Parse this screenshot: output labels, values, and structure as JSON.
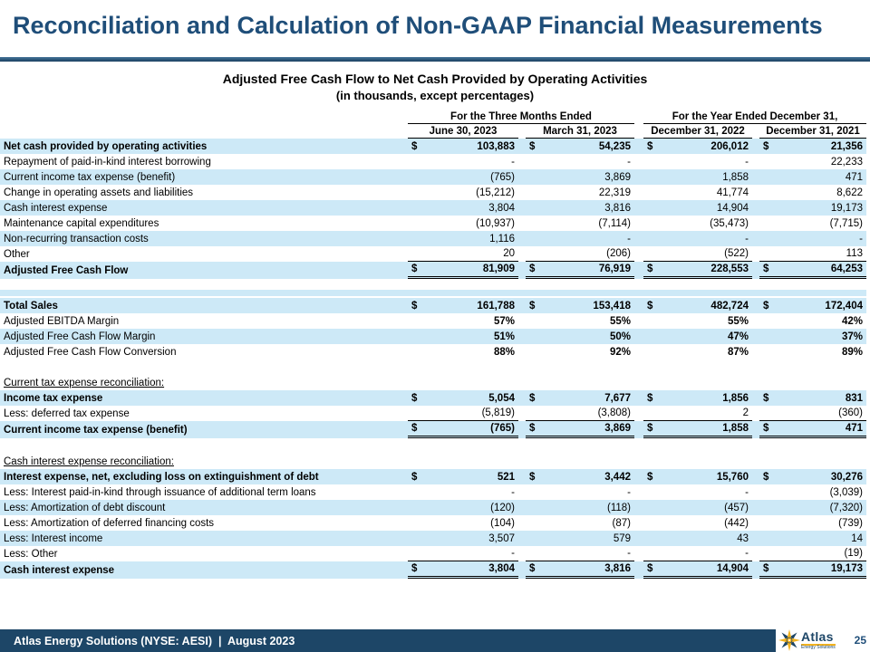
{
  "page_title": "Reconciliation and Calculation of Non-GAAP Financial Measurements",
  "table": {
    "subtitle1": "Adjusted Free Cash Flow to Net Cash Provided by Operating Activities",
    "subtitle2": "(in thousands, except percentages)",
    "col_groups": [
      {
        "label": "For the Three Months Ended",
        "cols": [
          "June 30, 2023",
          "March 31, 2023"
        ]
      },
      {
        "label": "For the Year Ended December 31,",
        "cols": [
          "December 31, 2022",
          "December 31, 2021"
        ]
      }
    ],
    "rows": [
      {
        "label": "Net cash provided by operating activities",
        "dollar": true,
        "bold": true,
        "shade": true,
        "values": [
          "103,883",
          "54,235",
          "206,012",
          "21,356"
        ]
      },
      {
        "label": "Repayment of paid-in-kind interest borrowing",
        "values": [
          "-",
          "-",
          "-",
          "22,233"
        ]
      },
      {
        "label": "Current income tax expense (benefit)",
        "shade": true,
        "values": [
          "(765)",
          "3,869",
          "1,858",
          "471"
        ]
      },
      {
        "label": "Change in operating assets and liabilities",
        "values": [
          "(15,212)",
          "22,319",
          "41,774",
          "8,622"
        ]
      },
      {
        "label": "Cash interest expense",
        "shade": true,
        "values": [
          "3,804",
          "3,816",
          "14,904",
          "19,173"
        ]
      },
      {
        "label": "Maintenance capital expenditures",
        "values": [
          "(10,937)",
          "(7,114)",
          "(35,473)",
          "(7,715)"
        ]
      },
      {
        "label": "Non-recurring transaction costs",
        "shade": true,
        "values": [
          "1,116",
          "-",
          "-",
          "-"
        ]
      },
      {
        "label": "Other",
        "vline": "single",
        "values": [
          "20",
          "(206)",
          "(522)",
          "113"
        ]
      },
      {
        "label": "Adjusted Free Cash Flow",
        "dollar": true,
        "bold": true,
        "shade": true,
        "vline": "double",
        "values": [
          "81,909",
          "76,919",
          "228,553",
          "64,253"
        ]
      },
      {
        "type": "spacer",
        "h": 12
      },
      {
        "type": "spacer",
        "h": 7,
        "shade": true
      },
      {
        "type": "spacer",
        "h": 2
      },
      {
        "label": "Total Sales",
        "dollar": true,
        "bold": true,
        "shade": true,
        "values": [
          "161,788",
          "153,418",
          "482,724",
          "172,404"
        ]
      },
      {
        "label": "Adjusted EBITDA Margin",
        "bold_values": true,
        "values": [
          "57%",
          "55%",
          "55%",
          "42%"
        ]
      },
      {
        "label": "Adjusted Free Cash Flow Margin",
        "shade": true,
        "bold_values": true,
        "values": [
          "51%",
          "50%",
          "47%",
          "37%"
        ]
      },
      {
        "label": "Adjusted Free Cash Flow Conversion",
        "bold_values": true,
        "values": [
          "88%",
          "92%",
          "87%",
          "89%"
        ]
      },
      {
        "type": "spacer",
        "h": 17
      },
      {
        "type": "section",
        "label": "Current tax expense reconciliation:"
      },
      {
        "label": "Income tax expense",
        "dollar": true,
        "bold": true,
        "shade": true,
        "values": [
          "5,054",
          "7,677",
          "1,856",
          "831"
        ]
      },
      {
        "label": "Less: deferred tax expense",
        "vline": "single",
        "values": [
          "(5,819)",
          "(3,808)",
          "2",
          "(360)"
        ]
      },
      {
        "label": "Current income tax expense (benefit)",
        "dollar": true,
        "bold": true,
        "shade": true,
        "vline": "double",
        "values": [
          "(765)",
          "3,869",
          "1,858",
          "471"
        ]
      },
      {
        "type": "spacer",
        "h": 17
      },
      {
        "type": "section",
        "label": "Cash interest expense reconciliation:"
      },
      {
        "label": "Interest expense, net, excluding loss on extinguishment of debt",
        "dollar": true,
        "bold": true,
        "shade": true,
        "values": [
          "521",
          "3,442",
          "15,760",
          "30,276"
        ]
      },
      {
        "label": "Less: Interest paid-in-kind through issuance of additional term loans",
        "values": [
          "-",
          "-",
          "-",
          "(3,039)"
        ]
      },
      {
        "label": "Less: Amortization of debt discount",
        "shade": true,
        "values": [
          "(120)",
          "(118)",
          "(457)",
          "(7,320)"
        ]
      },
      {
        "label": "Less: Amortization of deferred financing costs",
        "values": [
          "(104)",
          "(87)",
          "(442)",
          "(739)"
        ]
      },
      {
        "label": "Less: Interest income",
        "shade": true,
        "values": [
          "3,507",
          "579",
          "43",
          "14"
        ]
      },
      {
        "label": "Less: Other",
        "vline": "single",
        "values": [
          "-",
          "-",
          "-",
          "(19)"
        ]
      },
      {
        "label": "Cash interest expense",
        "dollar": true,
        "bold": true,
        "shade": true,
        "vline": "double",
        "values": [
          "3,804",
          "3,816",
          "14,904",
          "19,173"
        ]
      }
    ]
  },
  "footer": {
    "text": "Atlas Energy Solutions (NYSE: AESI)  |  August 2023",
    "page_number": "25",
    "logo_wordmark": "Atlas",
    "logo_subtext": "Energy Solutions"
  },
  "colors": {
    "title_blue": "#1F4E79",
    "row_shade_blue": "#CDE9F7",
    "footer_navy": "#1D4667",
    "logo_gold": "#F2B21E"
  }
}
